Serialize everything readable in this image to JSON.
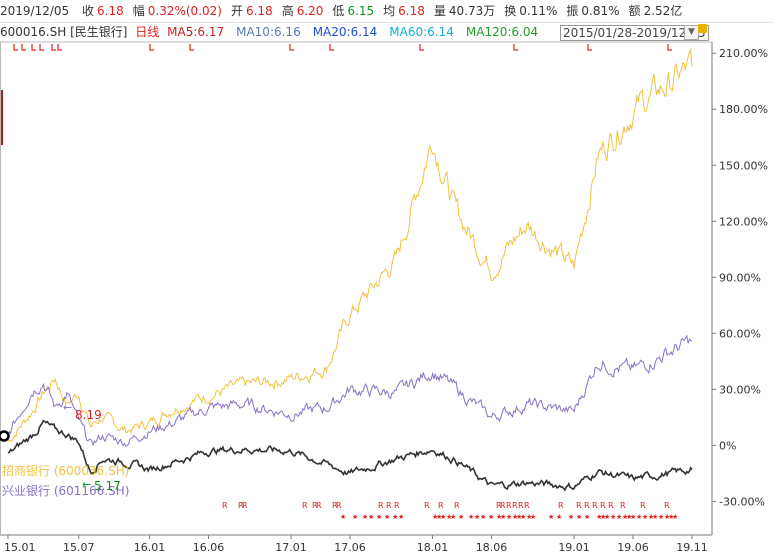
{
  "quote": {
    "date": "2019/12/05",
    "items": [
      {
        "label": "收",
        "value": "6.18",
        "color": "red"
      },
      {
        "label": "幅",
        "value": "0.32%(0.02)",
        "color": "red"
      },
      {
        "label": "开",
        "value": "6.18",
        "color": "red"
      },
      {
        "label": "高",
        "value": "6.20",
        "color": "red"
      },
      {
        "label": "低",
        "value": "6.15",
        "color": "green"
      },
      {
        "label": "均",
        "value": "6.18",
        "color": "red"
      },
      {
        "label": "量",
        "value": "40.73万",
        "color": "normal"
      },
      {
        "label": "换",
        "value": "0.11%",
        "color": "normal"
      },
      {
        "label": "振",
        "value": "0.81%",
        "color": "normal"
      },
      {
        "label": "额",
        "value": "2.52亿",
        "color": "normal"
      }
    ]
  },
  "indicator_bar": {
    "code": "600016.SH",
    "name": "[民生银行]",
    "period": "日线",
    "ma": [
      {
        "label": "MA5:6.17",
        "color": "#d02020"
      },
      {
        "label": "MA10:6.16",
        "color": "#5a78b8"
      },
      {
        "label": "MA20:6.14",
        "color": "#2050d0"
      },
      {
        "label": "MA60:6.14",
        "color": "#10b0d8"
      },
      {
        "label": "MA120:6.04",
        "color": "#20a020"
      }
    ],
    "range": "2015/01/28-2019/12/05"
  },
  "chart_data": {
    "type": "line",
    "x_ticks": [
      "15.01",
      "15.07",
      "16.01",
      "16.06",
      "17.01",
      "17.06",
      "18.01",
      "18.06",
      "19.01",
      "19.06",
      "19.11"
    ],
    "y_ticks": [
      "210.00%",
      "180.00%",
      "150.00%",
      "120.00%",
      "90.00%",
      "60.00%",
      "30.00%",
      "0%",
      "-30.00%"
    ],
    "ylim": [
      -48,
      216
    ],
    "series": [
      {
        "name": "600016.SH",
        "color": "#333333",
        "points": [
          [
            "15.01",
            -5
          ],
          [
            "15.03",
            5
          ],
          [
            "15.04",
            12
          ],
          [
            "15.05",
            8
          ],
          [
            "15.06",
            6
          ],
          [
            "15.07",
            2
          ],
          [
            "15.08",
            -14
          ],
          [
            "15.09",
            -7
          ],
          [
            "15.11",
            -9
          ],
          [
            "16.01",
            -13
          ],
          [
            "16.03",
            -9
          ],
          [
            "16.06",
            -3
          ],
          [
            "16.09",
            -2
          ],
          [
            "17.01",
            -3
          ],
          [
            "17.04",
            -10
          ],
          [
            "17.06",
            -15
          ],
          [
            "17.10",
            -7
          ],
          [
            "18.01",
            -2
          ],
          [
            "18.03",
            -8
          ],
          [
            "18.06",
            -22
          ],
          [
            "18.09",
            -20
          ],
          [
            "19.01",
            -22
          ],
          [
            "19.03",
            -14
          ],
          [
            "19.06",
            -18
          ],
          [
            "19.09",
            -15
          ],
          [
            "19.11",
            -13
          ]
        ]
      },
      {
        "name": "招商银行 (600036.SH)",
        "color": "#f2c23c",
        "points": [
          [
            "15.01",
            2
          ],
          [
            "15.03",
            18
          ],
          [
            "15.04",
            28
          ],
          [
            "15.05",
            36
          ],
          [
            "15.06",
            22
          ],
          [
            "15.07",
            28
          ],
          [
            "15.08",
            10
          ],
          [
            "15.09",
            15
          ],
          [
            "15.11",
            8
          ],
          [
            "16.01",
            12
          ],
          [
            "16.03",
            20
          ],
          [
            "16.06",
            27
          ],
          [
            "16.09",
            32
          ],
          [
            "17.01",
            36
          ],
          [
            "17.04",
            42
          ],
          [
            "17.06",
            70
          ],
          [
            "17.10",
            100
          ],
          [
            "18.01",
            165
          ],
          [
            "18.03",
            125
          ],
          [
            "18.06",
            95
          ],
          [
            "18.09",
            118
          ],
          [
            "19.01",
            95
          ],
          [
            "19.03",
            155
          ],
          [
            "19.06",
            180
          ],
          [
            "19.09",
            193
          ],
          [
            "19.11",
            203
          ]
        ]
      },
      {
        "name": "兴业银行 (601166.SH)",
        "color": "#8870c8",
        "points": [
          [
            "15.01",
            5
          ],
          [
            "15.03",
            30
          ],
          [
            "15.04",
            35
          ],
          [
            "15.05",
            20
          ],
          [
            "15.06",
            28
          ],
          [
            "15.07",
            12
          ],
          [
            "15.08",
            0
          ],
          [
            "15.09",
            5
          ],
          [
            "15.11",
            2
          ],
          [
            "16.01",
            8
          ],
          [
            "16.03",
            12
          ],
          [
            "16.06",
            20
          ],
          [
            "16.09",
            22
          ],
          [
            "17.01",
            17
          ],
          [
            "17.04",
            20
          ],
          [
            "17.06",
            30
          ],
          [
            "17.10",
            28
          ],
          [
            "18.01",
            40
          ],
          [
            "18.03",
            30
          ],
          [
            "18.06",
            15
          ],
          [
            "18.09",
            22
          ],
          [
            "19.01",
            18
          ],
          [
            "19.03",
            45
          ],
          [
            "19.06",
            40
          ],
          [
            "19.09",
            50
          ],
          [
            "19.11",
            56
          ]
        ]
      }
    ],
    "annotations": [
      {
        "text": "8.19",
        "color": "#e0201e"
      },
      {
        "text": "5.17",
        "color": "#0a9a1a"
      }
    ],
    "markers": {
      "r": "R",
      "star": "★"
    }
  }
}
